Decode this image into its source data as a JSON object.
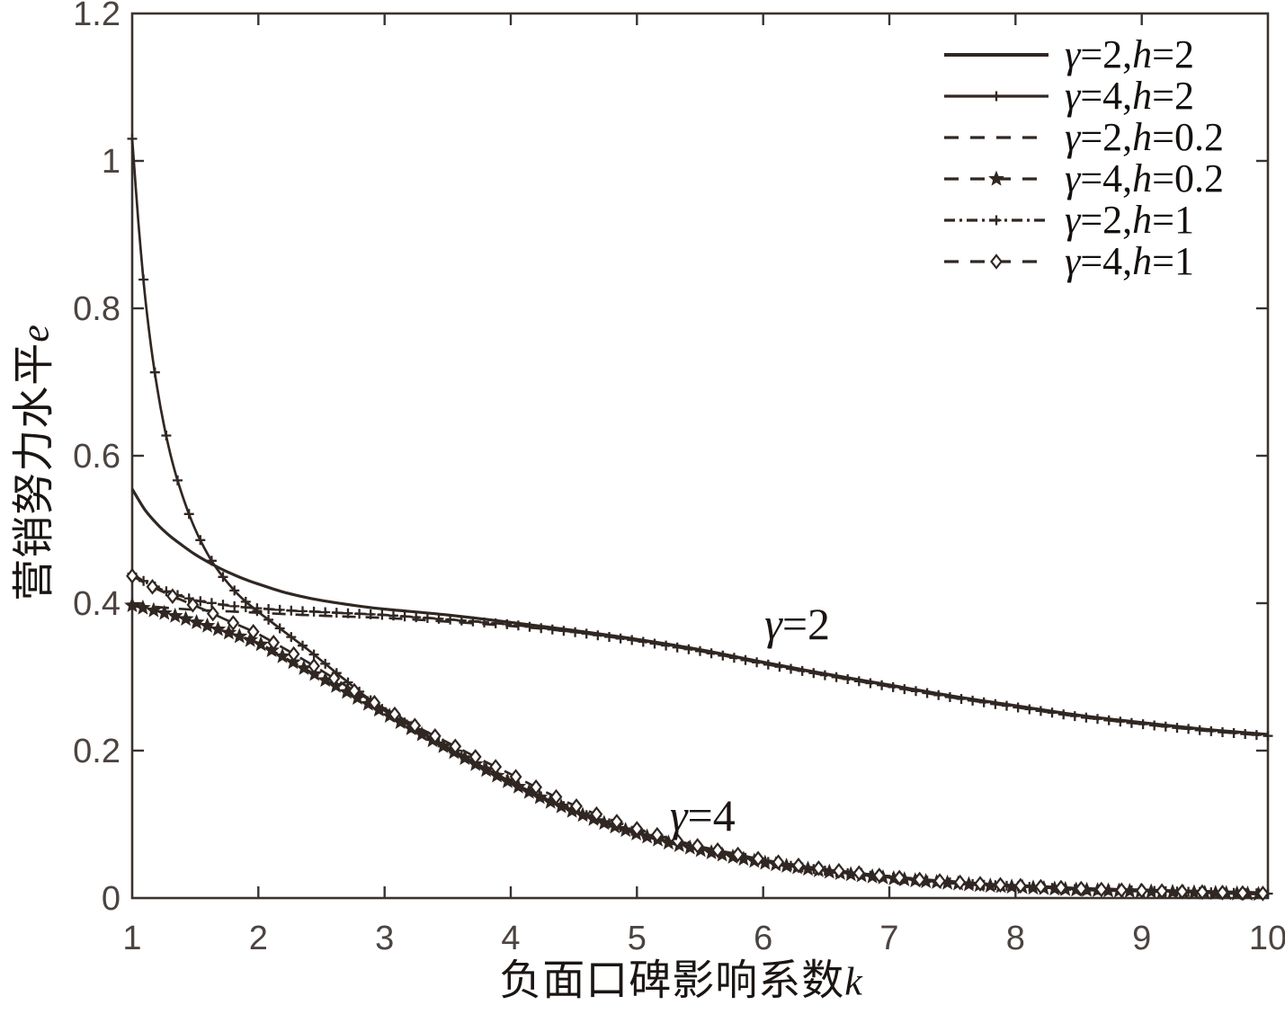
{
  "colors": {
    "ink": "#302723",
    "frame": "#3a332f",
    "tick_text": "#4c4440",
    "label_text": "#1b1613",
    "background": "#ffffff"
  },
  "chart_data": {
    "type": "line",
    "title": "",
    "xlabel": {
      "text": "负面口碑影响系数",
      "variable": "k"
    },
    "ylabel": {
      "text": "营销努力水平",
      "variable": "e"
    },
    "xlim": [
      1,
      10
    ],
    "ylim": [
      0,
      1.2
    ],
    "x_ticks": [
      1,
      2,
      3,
      4,
      5,
      6,
      7,
      8,
      9,
      10
    ],
    "x_tick_labels": [
      "1",
      "2",
      "3",
      "4",
      "5",
      "6",
      "7",
      "8",
      "9",
      "10"
    ],
    "y_ticks": [
      0,
      0.2,
      0.4,
      0.6,
      0.8,
      1,
      1.2
    ],
    "y_tick_labels": [
      "0",
      "0.2",
      "0.4",
      "0.6",
      "0.8",
      "1",
      "1.2"
    ],
    "grid": false,
    "legend_position": "top-right",
    "annotations": [
      {
        "symbol": "γ",
        "rest": "=2",
        "label": "γ=2",
        "k": 6.27,
        "e": 0.372
      },
      {
        "symbol": "γ",
        "rest": "=4",
        "label": "γ=4",
        "k": 5.52,
        "e": 0.112
      }
    ],
    "series": [
      {
        "id": "g2-h2",
        "label": "γ=2,h=2",
        "gamma": "2",
        "h": "2",
        "line": "solid",
        "marker": "none",
        "marker_step": 0,
        "points": [
          [
            1,
            0.555
          ],
          [
            1.1,
            0.527
          ],
          [
            1.2,
            0.507
          ],
          [
            1.3,
            0.491
          ],
          [
            1.4,
            0.478
          ],
          [
            1.5,
            0.466
          ],
          [
            1.6,
            0.456
          ],
          [
            1.7,
            0.447
          ],
          [
            1.8,
            0.439
          ],
          [
            1.9,
            0.432
          ],
          [
            2,
            0.426
          ],
          [
            2.2,
            0.415
          ],
          [
            2.4,
            0.407
          ],
          [
            2.6,
            0.401
          ],
          [
            2.8,
            0.396
          ],
          [
            3,
            0.392
          ],
          [
            3.5,
            0.384
          ],
          [
            4,
            0.374
          ],
          [
            4.5,
            0.363
          ],
          [
            5,
            0.351
          ],
          [
            5.5,
            0.337
          ],
          [
            6,
            0.32
          ],
          [
            6.5,
            0.304
          ],
          [
            7,
            0.289
          ],
          [
            7.5,
            0.274
          ],
          [
            8,
            0.261
          ],
          [
            8.5,
            0.248
          ],
          [
            9,
            0.238
          ],
          [
            9.5,
            0.229
          ],
          [
            10,
            0.222
          ]
        ]
      },
      {
        "id": "g4-h2",
        "label": "γ=4,h=2",
        "gamma": "4",
        "h": "2",
        "line": "solid",
        "marker": "plus",
        "marker_step": 0.09,
        "points": [
          [
            1,
            1.03
          ],
          [
            1.05,
            0.915
          ],
          [
            1.1,
            0.82
          ],
          [
            1.15,
            0.748
          ],
          [
            1.2,
            0.69
          ],
          [
            1.25,
            0.643
          ],
          [
            1.3,
            0.604
          ],
          [
            1.35,
            0.572
          ],
          [
            1.4,
            0.545
          ],
          [
            1.45,
            0.521
          ],
          [
            1.5,
            0.5
          ],
          [
            1.55,
            0.482
          ],
          [
            1.6,
            0.466
          ],
          [
            1.65,
            0.452
          ],
          [
            1.7,
            0.44
          ],
          [
            1.75,
            0.429
          ],
          [
            1.8,
            0.419
          ],
          [
            1.85,
            0.41
          ],
          [
            1.9,
            0.402
          ],
          [
            1.95,
            0.395
          ],
          [
            2,
            0.388
          ],
          [
            2.1,
            0.375
          ],
          [
            2.2,
            0.362
          ],
          [
            2.3,
            0.349
          ],
          [
            2.4,
            0.336
          ],
          [
            2.5,
            0.322
          ],
          [
            2.6,
            0.308
          ],
          [
            2.7,
            0.294
          ],
          [
            2.8,
            0.28
          ],
          [
            2.9,
            0.267
          ],
          [
            3,
            0.254
          ],
          [
            3.2,
            0.234
          ],
          [
            3.4,
            0.214
          ],
          [
            3.6,
            0.195
          ],
          [
            3.8,
            0.176
          ],
          [
            4,
            0.158
          ],
          [
            4.25,
            0.137
          ],
          [
            4.5,
            0.119
          ],
          [
            4.75,
            0.103
          ],
          [
            5,
            0.089
          ],
          [
            5.25,
            0.077
          ],
          [
            5.5,
            0.067
          ],
          [
            5.75,
            0.058
          ],
          [
            6,
            0.05
          ],
          [
            6.25,
            0.043
          ],
          [
            6.5,
            0.037
          ],
          [
            6.75,
            0.032
          ],
          [
            7,
            0.028
          ],
          [
            7.25,
            0.024
          ],
          [
            7.5,
            0.021
          ],
          [
            7.75,
            0.018
          ],
          [
            8,
            0.016
          ],
          [
            8.25,
            0.014
          ],
          [
            8.5,
            0.012
          ],
          [
            8.75,
            0.011
          ],
          [
            9,
            0.01
          ],
          [
            9.25,
            0.009
          ],
          [
            9.5,
            0.008
          ],
          [
            9.75,
            0.007
          ],
          [
            10,
            0.006
          ]
        ]
      },
      {
        "id": "g2-h02",
        "label": "γ=2,h=0.2",
        "gamma": "2",
        "h": "0.2",
        "line": "dashed",
        "marker": "none",
        "marker_step": 0,
        "points": [
          [
            1,
            0.398
          ],
          [
            1.25,
            0.394
          ],
          [
            1.5,
            0.391
          ],
          [
            1.75,
            0.389
          ],
          [
            2,
            0.387
          ],
          [
            2.5,
            0.383
          ],
          [
            3,
            0.38
          ],
          [
            3.5,
            0.375
          ],
          [
            4,
            0.369
          ],
          [
            4.5,
            0.361
          ],
          [
            5,
            0.35
          ],
          [
            5.5,
            0.336
          ],
          [
            6,
            0.319
          ],
          [
            6.5,
            0.303
          ],
          [
            7,
            0.288
          ],
          [
            7.5,
            0.273
          ],
          [
            8,
            0.26
          ],
          [
            8.5,
            0.247
          ],
          [
            9,
            0.237
          ],
          [
            9.5,
            0.228
          ],
          [
            10,
            0.221
          ]
        ]
      },
      {
        "id": "g4-h02",
        "label": "γ=4,h=0.2",
        "gamma": "4",
        "h": "0.2",
        "line": "dashed",
        "marker": "star",
        "marker_step": 0.085,
        "points": [
          [
            1,
            0.397
          ],
          [
            1.2,
            0.389
          ],
          [
            1.4,
            0.38
          ],
          [
            1.6,
            0.369
          ],
          [
            1.8,
            0.358
          ],
          [
            2,
            0.346
          ],
          [
            2.2,
            0.327
          ],
          [
            2.4,
            0.308
          ],
          [
            2.6,
            0.289
          ],
          [
            2.8,
            0.27
          ],
          [
            3,
            0.251
          ],
          [
            3.2,
            0.231
          ],
          [
            3.4,
            0.212
          ],
          [
            3.6,
            0.193
          ],
          [
            3.8,
            0.174
          ],
          [
            4,
            0.156
          ],
          [
            4.25,
            0.135
          ],
          [
            4.5,
            0.117
          ],
          [
            4.75,
            0.101
          ],
          [
            5,
            0.087
          ],
          [
            5.25,
            0.075
          ],
          [
            5.5,
            0.065
          ],
          [
            5.75,
            0.056
          ],
          [
            6,
            0.048
          ],
          [
            6.25,
            0.042
          ],
          [
            6.5,
            0.036
          ],
          [
            6.75,
            0.031
          ],
          [
            7,
            0.027
          ],
          [
            7.25,
            0.023
          ],
          [
            7.5,
            0.02
          ],
          [
            7.75,
            0.017
          ],
          [
            8,
            0.015
          ],
          [
            8.25,
            0.013
          ],
          [
            8.5,
            0.011
          ],
          [
            8.75,
            0.01
          ],
          [
            9,
            0.009
          ],
          [
            9.25,
            0.008
          ],
          [
            9.5,
            0.007
          ],
          [
            9.75,
            0.006
          ],
          [
            10,
            0.005
          ]
        ]
      },
      {
        "id": "g2-h1",
        "label": "γ=2,h=1",
        "gamma": "2",
        "h": "1",
        "line": "dashdot",
        "marker": "plus",
        "marker_step": 0.09,
        "points": [
          [
            1,
            0.44
          ],
          [
            1.1,
            0.429
          ],
          [
            1.2,
            0.421
          ],
          [
            1.3,
            0.414
          ],
          [
            1.4,
            0.409
          ],
          [
            1.5,
            0.404
          ],
          [
            1.6,
            0.401
          ],
          [
            1.8,
            0.396
          ],
          [
            2,
            0.393
          ],
          [
            2.25,
            0.39
          ],
          [
            2.5,
            0.388
          ],
          [
            2.75,
            0.386
          ],
          [
            3,
            0.384
          ],
          [
            3.5,
            0.378
          ],
          [
            4,
            0.371
          ],
          [
            4.5,
            0.361
          ],
          [
            5,
            0.349
          ],
          [
            5.5,
            0.335
          ],
          [
            6,
            0.318
          ],
          [
            6.5,
            0.302
          ],
          [
            7,
            0.287
          ],
          [
            7.5,
            0.272
          ],
          [
            8,
            0.259
          ],
          [
            8.5,
            0.246
          ],
          [
            9,
            0.236
          ],
          [
            9.5,
            0.227
          ],
          [
            10,
            0.22
          ]
        ]
      },
      {
        "id": "g4-h1",
        "label": "γ=4,h=1",
        "gamma": "4",
        "h": "1",
        "line": "dashed",
        "marker": "diamond",
        "marker_step": 0.16,
        "points": [
          [
            1,
            0.437
          ],
          [
            1.15,
            0.423
          ],
          [
            1.3,
            0.411
          ],
          [
            1.45,
            0.4
          ],
          [
            1.6,
            0.389
          ],
          [
            1.75,
            0.377
          ],
          [
            1.9,
            0.366
          ],
          [
            2,
            0.358
          ],
          [
            2.2,
            0.339
          ],
          [
            2.4,
            0.319
          ],
          [
            2.6,
            0.298
          ],
          [
            2.8,
            0.277
          ],
          [
            3,
            0.257
          ],
          [
            3.25,
            0.233
          ],
          [
            3.5,
            0.211
          ],
          [
            3.75,
            0.189
          ],
          [
            4,
            0.168
          ],
          [
            4.25,
            0.146
          ],
          [
            4.5,
            0.126
          ],
          [
            4.75,
            0.109
          ],
          [
            5,
            0.094
          ],
          [
            5.25,
            0.081
          ],
          [
            5.5,
            0.07
          ],
          [
            5.75,
            0.061
          ],
          [
            6,
            0.052
          ],
          [
            6.25,
            0.045
          ],
          [
            6.5,
            0.039
          ],
          [
            6.75,
            0.034
          ],
          [
            7,
            0.029
          ],
          [
            7.25,
            0.025
          ],
          [
            7.5,
            0.022
          ],
          [
            7.75,
            0.019
          ],
          [
            8,
            0.017
          ],
          [
            8.25,
            0.015
          ],
          [
            8.5,
            0.013
          ],
          [
            8.75,
            0.011
          ],
          [
            9,
            0.01
          ],
          [
            9.25,
            0.009
          ],
          [
            9.5,
            0.008
          ],
          [
            9.75,
            0.007
          ],
          [
            10,
            0.006
          ]
        ]
      }
    ]
  }
}
